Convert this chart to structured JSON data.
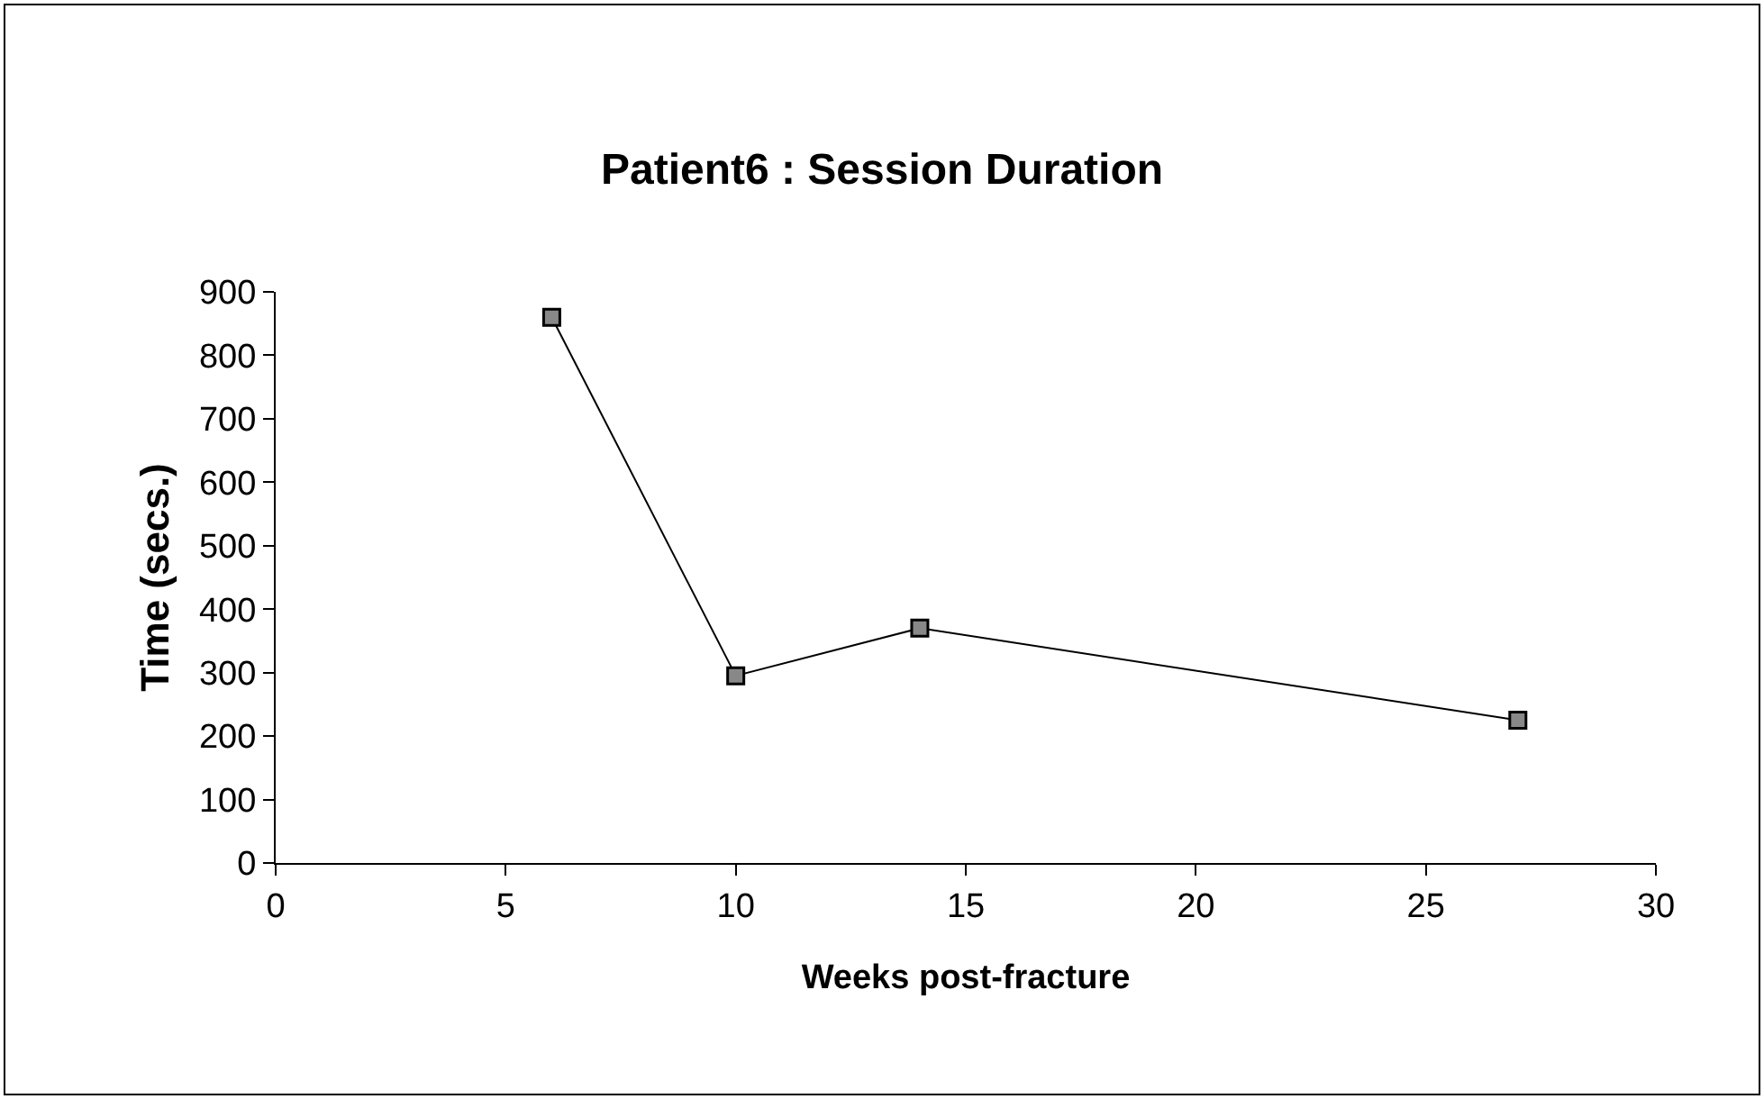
{
  "chart_data": {
    "type": "line",
    "title": "Patient6 : Session Duration",
    "xlabel": "Weeks post-fracture",
    "ylabel": "Time (secs.)",
    "x": [
      6,
      10,
      14,
      27
    ],
    "series": [
      {
        "color": "#000000",
        "values": [
          860,
          295,
          370,
          225
        ]
      }
    ],
    "xlim": [
      0,
      30
    ],
    "xticks": [
      0,
      5,
      10,
      15,
      20,
      25,
      30
    ],
    "ylim": [
      0,
      900
    ],
    "yticks": [
      0,
      100,
      200,
      300,
      400,
      500,
      600,
      700,
      800,
      900
    ],
    "grid": false,
    "marker": "square",
    "line_style": "solid"
  }
}
